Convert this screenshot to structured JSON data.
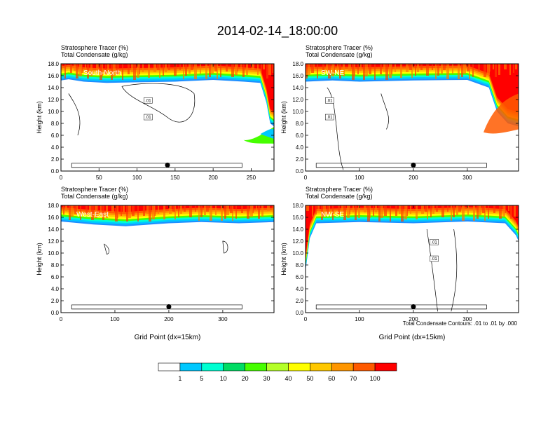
{
  "figure_title": "2014-02-14_18:00:00",
  "footnote": "Total Condensate Contours: .01 to .01 by .000",
  "colorbar": {
    "labels": [
      "1",
      "5",
      "10",
      "20",
      "30",
      "40",
      "50",
      "60",
      "70",
      "100"
    ],
    "colors": [
      "#ffffff",
      "#1e8fff",
      "#00c8ff",
      "#00ffd2",
      "#00dc64",
      "#46ff00",
      "#b4ff28",
      "#ffff00",
      "#ffc800",
      "#ff9600",
      "#ff5a00",
      "#ff0000"
    ]
  },
  "chart_data": [
    {
      "type": "heatmap",
      "title_line1": "Stratosphere Tracer   (%)",
      "title_line2": "Total Condensate   (g/kg)",
      "panel_label": "South-North",
      "ylabel": "Height (km)",
      "xlabel": "",
      "xlim": [
        0,
        280
      ],
      "ylim": [
        0,
        18
      ],
      "xticks": [
        "0",
        "50",
        "100",
        "150",
        "200",
        "250"
      ],
      "xtick_values": [
        0,
        50,
        100,
        150,
        200,
        250
      ],
      "yticks": [
        "0.0",
        "2.0",
        "4.0",
        "6.0",
        "8.0",
        "10.0",
        "12.0",
        "14.0",
        "16.0",
        "18.0"
      ],
      "tracer_boundary_km": [
        [
          0,
          15.2
        ],
        [
          10,
          15.4
        ],
        [
          30,
          15.0
        ],
        [
          60,
          14.8
        ],
        [
          100,
          14.9
        ],
        [
          150,
          15.0
        ],
        [
          200,
          15.3
        ],
        [
          240,
          15.0
        ],
        [
          262,
          14.8
        ],
        [
          270,
          11.5
        ],
        [
          275,
          8
        ],
        [
          280,
          7.5
        ]
      ],
      "blob_label": ".01",
      "contour_labels": [
        ".01",
        ".01"
      ],
      "marker_x": 140,
      "marker_y": 1.0
    },
    {
      "type": "heatmap",
      "title_line1": "Stratosphere Tracer   (%)",
      "title_line2": "Total Condensate   (g/kg)",
      "panel_label": "SW-NE",
      "ylabel": "Height (km)",
      "xlabel": "",
      "xlim": [
        0,
        395
      ],
      "ylim": [
        0,
        18
      ],
      "xticks": [
        "0",
        "100",
        "200",
        "300"
      ],
      "xtick_values": [
        0,
        100,
        200,
        300
      ],
      "yticks": [
        "0.0",
        "2.0",
        "4.0",
        "6.0",
        "8.0",
        "10.0",
        "12.0",
        "14.0",
        "16.0",
        "18.0"
      ],
      "tracer_boundary_km": [
        [
          0,
          15.0
        ],
        [
          50,
          15.2
        ],
        [
          100,
          15.0
        ],
        [
          200,
          15.2
        ],
        [
          300,
          15.3
        ],
        [
          340,
          14.0
        ],
        [
          355,
          10.0
        ],
        [
          375,
          8.0
        ],
        [
          395,
          7.5
        ]
      ],
      "contour_labels": [
        ".01",
        ".01"
      ],
      "marker_x": 200,
      "marker_y": 1.0
    },
    {
      "type": "heatmap",
      "title_line1": "Stratosphere Tracer   (%)",
      "title_line2": "Total Condensate   (g/kg)",
      "panel_label": "West-East",
      "ylabel": "Height (km)",
      "xlabel": "Grid Point (dx=15km)",
      "xlim": [
        0,
        395
      ],
      "ylim": [
        0,
        18
      ],
      "xticks": [
        "0",
        "100",
        "200",
        "300"
      ],
      "xtick_values": [
        0,
        100,
        200,
        300
      ],
      "yticks": [
        "0.0",
        "2.0",
        "4.0",
        "6.0",
        "8.0",
        "10.0",
        "12.0",
        "14.0",
        "16.0",
        "18.0"
      ],
      "tracer_boundary_km": [
        [
          0,
          15.3
        ],
        [
          60,
          14.8
        ],
        [
          120,
          14.5
        ],
        [
          200,
          15.0
        ],
        [
          260,
          15.2
        ],
        [
          330,
          15.0
        ],
        [
          395,
          15.2
        ]
      ],
      "contour_labels": [],
      "marker_x": 200,
      "marker_y": 1.0
    },
    {
      "type": "heatmap",
      "title_line1": "Stratosphere Tracer   (%)",
      "title_line2": "Total Condensate   (g/kg)",
      "panel_label": "NW-SE",
      "ylabel": "Height (km)",
      "xlabel": "Grid Point (dx=15km)",
      "xlim": [
        0,
        395
      ],
      "ylim": [
        0,
        18
      ],
      "xticks": [
        "0",
        "100",
        "200",
        "300"
      ],
      "xtick_values": [
        0,
        100,
        200,
        300
      ],
      "yticks": [
        "0.0",
        "2.0",
        "4.0",
        "6.0",
        "8.0",
        "10.0",
        "12.0",
        "14.0",
        "16.0",
        "18.0"
      ],
      "tracer_boundary_km": [
        [
          0,
          7.0
        ],
        [
          8,
          12.5
        ],
        [
          20,
          15.0
        ],
        [
          100,
          15.2
        ],
        [
          200,
          15.0
        ],
        [
          300,
          15.3
        ],
        [
          370,
          15.0
        ],
        [
          390,
          13.0
        ],
        [
          395,
          12.0
        ]
      ],
      "contour_labels": [
        ".01",
        ".01"
      ],
      "marker_x": 200,
      "marker_y": 1.0
    }
  ]
}
